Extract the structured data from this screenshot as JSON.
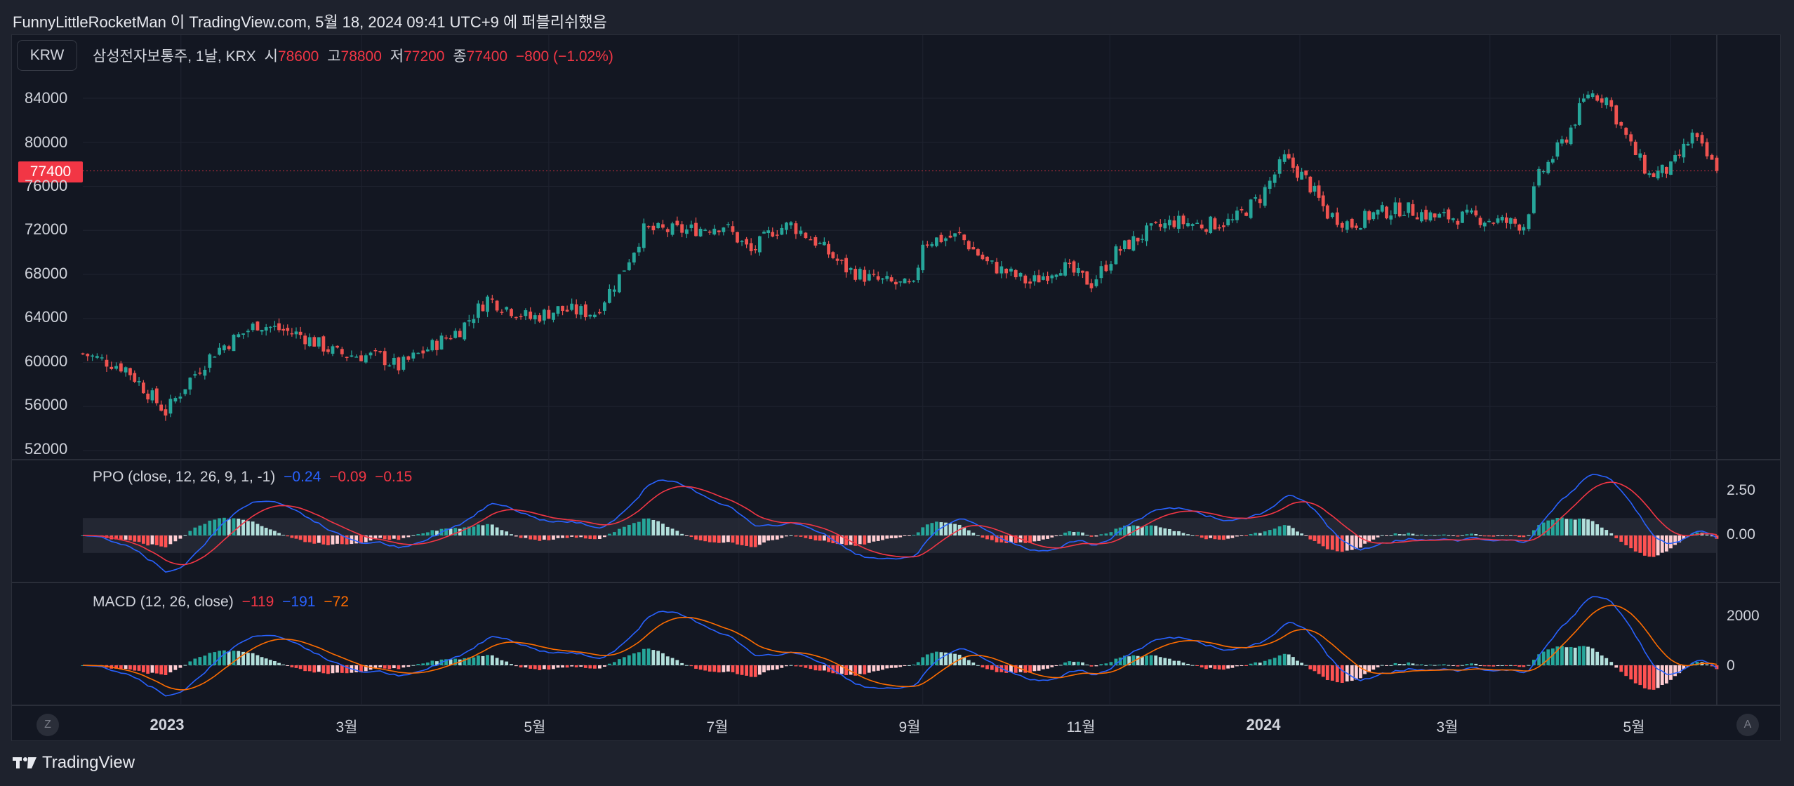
{
  "attribution": "FunnyLittleRocketMan 이 TradingView.com, 5월 18, 2024 09:41 UTC+9 에 퍼블리쉬했음",
  "currency_button": "KRW",
  "symbol_line": {
    "symbol": "삼성전자보통주, 1날, KRX",
    "open_label": "시",
    "open": "78600",
    "high_label": "고",
    "high": "78800",
    "low_label": "저",
    "low": "77200",
    "close_label": "종",
    "close": "77400",
    "change": "−800 (−1.02%)"
  },
  "last_price_badge": "77400",
  "ppo_legend": {
    "name": "PPO (close, 12, 26, 9, 1, -1)",
    "v1": "−0.24",
    "v2": "−0.09",
    "v3": "−0.15"
  },
  "macd_legend": {
    "name": "MACD (12, 26, close)",
    "v1": "−119",
    "v2": "−191",
    "v3": "−72"
  },
  "footer_brand": "TradingView",
  "z_button": "Z",
  "a_button": "A",
  "colors": {
    "up": "#26a69a",
    "down": "#ef5350",
    "blue": "#2962ff",
    "red": "#f23645",
    "orange": "#ff6d00"
  },
  "chart_data": [
    {
      "type": "candlestick",
      "title": "삼성전자보통주, 1날, KRX",
      "ylim": [
        51000,
        86500
      ],
      "yticks": [
        "84000",
        "80000",
        "76000",
        "72000",
        "68000",
        "64000",
        "60000",
        "56000",
        "52000"
      ],
      "xticks": [
        {
          "label": "2023",
          "date": "2023-01-02",
          "bold": true
        },
        {
          "label": "3월",
          "date": "2023-03-02"
        },
        {
          "label": "5월",
          "date": "2023-05-02"
        },
        {
          "label": "7월",
          "date": "2023-07-03"
        },
        {
          "label": "9월",
          "date": "2023-09-01"
        },
        {
          "label": "11월",
          "date": "2023-11-01"
        },
        {
          "label": "2024",
          "date": "2024-01-02",
          "bold": true
        },
        {
          "label": "3월",
          "date": "2024-03-04"
        },
        {
          "label": "5월",
          "date": "2024-05-02"
        }
      ],
      "close_series": [
        [
          "2022-12-01",
          60800
        ],
        [
          "2022-12-15",
          59500
        ],
        [
          "2022-12-28",
          55500
        ],
        [
          "2023-01-05",
          58500
        ],
        [
          "2023-01-13",
          61000
        ],
        [
          "2023-01-27",
          63500
        ],
        [
          "2023-02-03",
          63000
        ],
        [
          "2023-02-10",
          62500
        ],
        [
          "2023-02-22",
          60800
        ],
        [
          "2023-03-08",
          60500
        ],
        [
          "2023-03-14",
          59600
        ],
        [
          "2023-03-22",
          61000
        ],
        [
          "2023-04-03",
          63000
        ],
        [
          "2023-04-12",
          65800
        ],
        [
          "2023-04-26",
          64000
        ],
        [
          "2023-05-05",
          64800
        ],
        [
          "2023-05-17",
          64500
        ],
        [
          "2023-05-25",
          67800
        ],
        [
          "2023-06-02",
          72000
        ],
        [
          "2023-06-16",
          72000
        ],
        [
          "2023-06-28",
          72500
        ],
        [
          "2023-07-07",
          70000
        ],
        [
          "2023-07-14",
          72000
        ],
        [
          "2023-07-20",
          72500
        ],
        [
          "2023-07-28",
          71000
        ],
        [
          "2023-08-07",
          68500
        ],
        [
          "2023-08-16",
          67500
        ],
        [
          "2023-08-29",
          66800
        ],
        [
          "2023-09-01",
          71000
        ],
        [
          "2023-09-13",
          71500
        ],
        [
          "2023-09-22",
          69000
        ],
        [
          "2023-10-06",
          67200
        ],
        [
          "2023-10-16",
          68800
        ],
        [
          "2023-10-26",
          67200
        ],
        [
          "2023-11-03",
          70000
        ],
        [
          "2023-11-13",
          71800
        ],
        [
          "2023-11-22",
          72800
        ],
        [
          "2023-12-01",
          72500
        ],
        [
          "2023-12-11",
          72800
        ],
        [
          "2023-12-20",
          75000
        ],
        [
          "2023-12-28",
          78500
        ],
        [
          "2024-01-04",
          76600
        ],
        [
          "2024-01-11",
          73500
        ],
        [
          "2024-01-19",
          72500
        ],
        [
          "2024-01-26",
          73500
        ],
        [
          "2024-02-05",
          74000
        ],
        [
          "2024-02-15",
          73200
        ],
        [
          "2024-02-27",
          73200
        ],
        [
          "2024-03-08",
          72800
        ],
        [
          "2024-03-15",
          72500
        ],
        [
          "2024-03-20",
          76900
        ],
        [
          "2024-03-29",
          80500
        ],
        [
          "2024-04-05",
          84500
        ],
        [
          "2024-04-11",
          84000
        ],
        [
          "2024-04-19",
          79600
        ],
        [
          "2024-04-25",
          77000
        ],
        [
          "2024-05-02",
          77600
        ],
        [
          "2024-05-09",
          80600
        ],
        [
          "2024-05-17",
          77400
        ]
      ]
    },
    {
      "type": "line",
      "title": "PPO (close, 12, 26, 9, 1, -1)",
      "ylim": [
        -2.0,
        4.0
      ],
      "yticks": [
        "2.50",
        "0.00"
      ],
      "series": [
        {
          "name": "PPO",
          "color": "#2962ff"
        },
        {
          "name": "Signal",
          "color": "#f23645"
        },
        {
          "name": "Histogram"
        }
      ]
    },
    {
      "type": "line",
      "title": "MACD (12, 26, close)",
      "ylim": [
        -1500,
        3200
      ],
      "yticks": [
        "2000",
        "0"
      ],
      "series": [
        {
          "name": "MACD",
          "color": "#2962ff"
        },
        {
          "name": "Signal",
          "color": "#ff6d00"
        },
        {
          "name": "Histogram"
        }
      ]
    }
  ]
}
